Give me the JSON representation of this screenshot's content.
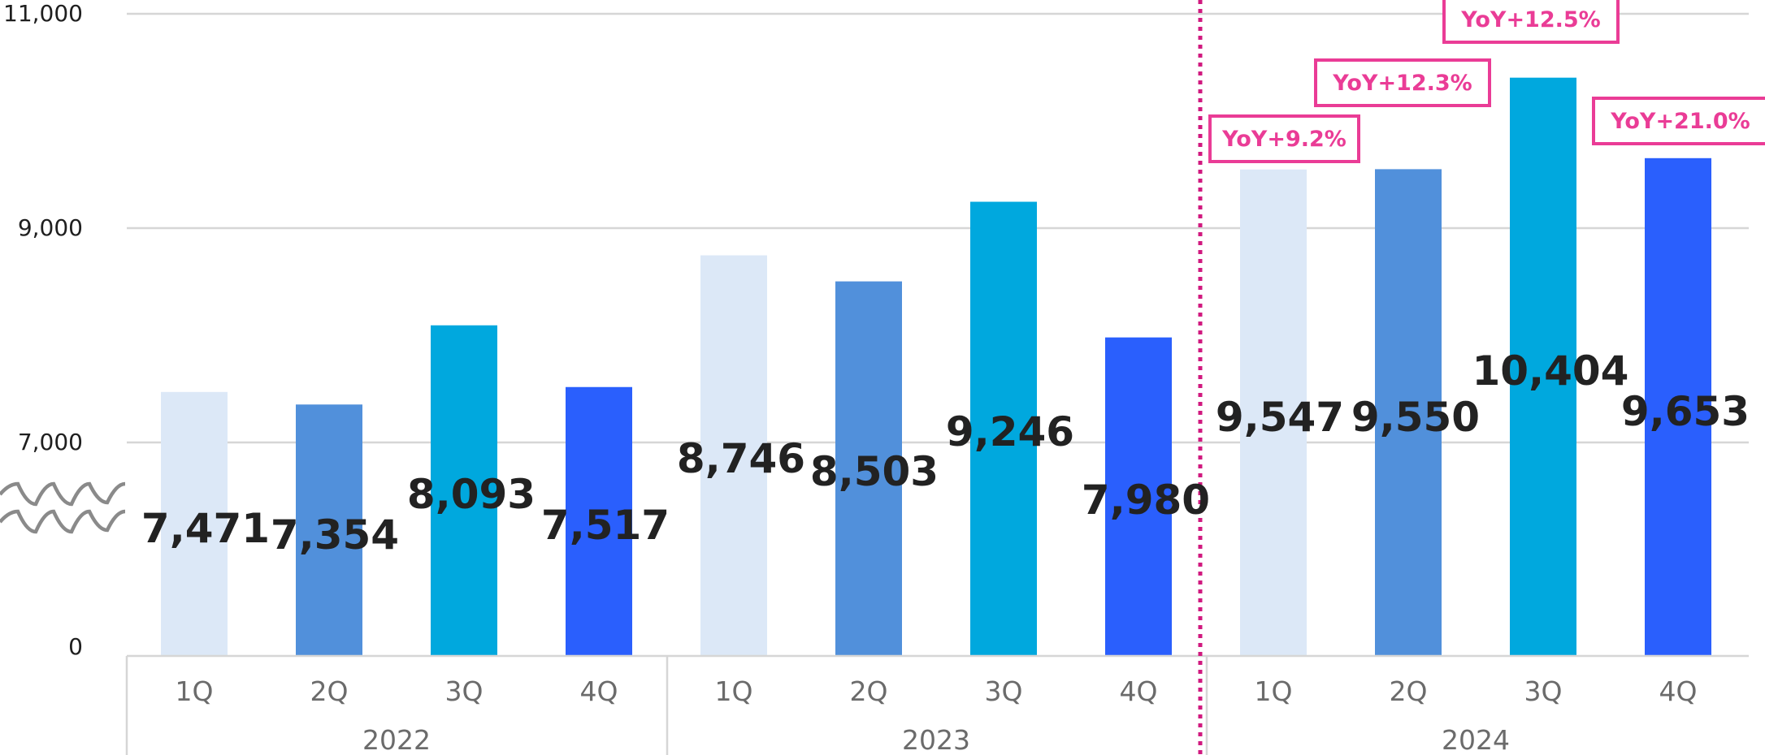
{
  "chart_data": {
    "type": "bar",
    "y_ticks": [
      "0",
      "7,000",
      "9,000",
      "11,000"
    ],
    "broken_axis": true,
    "groups": [
      {
        "label": "2022",
        "categories": [
          "1Q",
          "2Q",
          "3Q",
          "4Q"
        ]
      },
      {
        "label": "2023",
        "categories": [
          "1Q",
          "2Q",
          "3Q",
          "4Q"
        ]
      },
      {
        "label": "2024",
        "categories": [
          "1Q",
          "2Q",
          "3Q",
          "4Q"
        ]
      }
    ],
    "bars": [
      {
        "year": "2022",
        "quarter": "1Q",
        "value": 7471,
        "label": "7,471"
      },
      {
        "year": "2022",
        "quarter": "2Q",
        "value": 7354,
        "label": "7,354"
      },
      {
        "year": "2022",
        "quarter": "3Q",
        "value": 8093,
        "label": "8,093"
      },
      {
        "year": "2022",
        "quarter": "4Q",
        "value": 7517,
        "label": "7,517"
      },
      {
        "year": "2023",
        "quarter": "1Q",
        "value": 8746,
        "label": "8,746"
      },
      {
        "year": "2023",
        "quarter": "2Q",
        "value": 8503,
        "label": "8,503"
      },
      {
        "year": "2023",
        "quarter": "3Q",
        "value": 9246,
        "label": "9,246"
      },
      {
        "year": "2023",
        "quarter": "4Q",
        "value": 7980,
        "label": "7,980"
      },
      {
        "year": "2024",
        "quarter": "1Q",
        "value": 9547,
        "label": "9,547",
        "yoy": "YoY+9.2%"
      },
      {
        "year": "2024",
        "quarter": "2Q",
        "value": 9550,
        "label": "9,550",
        "yoy": "YoY+12.3%"
      },
      {
        "year": "2024",
        "quarter": "3Q",
        "value": 10404,
        "label": "10,404",
        "yoy": "YoY+12.5%"
      },
      {
        "year": "2024",
        "quarter": "4Q",
        "value": 9653,
        "label": "9,653",
        "yoy": "YoY+21.0%"
      }
    ],
    "quarter_colors": {
      "1Q": "#dce8f7",
      "2Q": "#5190db",
      "3Q": "#00a8de",
      "4Q": "#2a5ffd"
    },
    "grid": true,
    "divider_color": "#d0197f",
    "yoy_color": "#ea3c96"
  }
}
